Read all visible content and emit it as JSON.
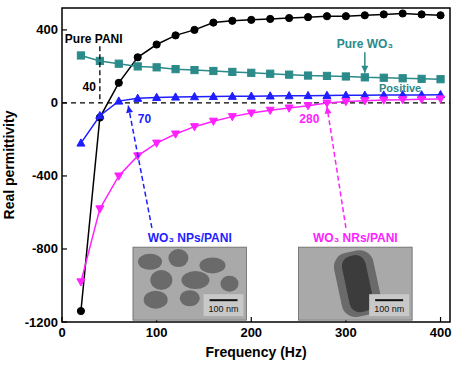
{
  "chart_data": {
    "type": "line",
    "xlabel": "Frequency (Hz)",
    "ylabel": "Real permittivity",
    "x": [
      20,
      40,
      60,
      80,
      100,
      120,
      140,
      160,
      180,
      200,
      220,
      240,
      260,
      280,
      300,
      320,
      340,
      360,
      380,
      400
    ],
    "series": [
      {
        "name": "Pure PANI",
        "color": "#000000",
        "marker": "circle",
        "line_style": "solid",
        "values": [
          -1140,
          -80,
          110,
          250,
          320,
          370,
          400,
          440,
          450,
          455,
          460,
          465,
          470,
          475,
          475,
          480,
          485,
          490,
          485,
          480
        ]
      },
      {
        "name": "Pure WO₃",
        "color": "#2b8a8a",
        "marker": "square",
        "line_style": "solid",
        "values": [
          260,
          230,
          215,
          200,
          195,
          185,
          180,
          175,
          170,
          165,
          160,
          155,
          150,
          148,
          145,
          140,
          138,
          135,
          132,
          130
        ]
      },
      {
        "name": "WO₃ NPs/PANI",
        "color": "#1e1eff",
        "marker": "triangle",
        "line_style": "solid",
        "values": [
          -220,
          -70,
          10,
          25,
          30,
          32,
          34,
          35,
          36,
          37,
          38,
          39,
          40,
          41,
          42,
          42,
          43,
          44,
          44,
          45
        ]
      },
      {
        "name": "WO₃ NRs/PANI",
        "color": "#ff22ff",
        "marker": "triangle-down",
        "line_style": "solid",
        "values": [
          -980,
          -580,
          -400,
          -290,
          -220,
          -170,
          -130,
          -100,
          -75,
          -55,
          -40,
          -28,
          -15,
          0,
          8,
          12,
          16,
          18,
          20,
          22
        ]
      }
    ],
    "xlim": [
      0,
      410
    ],
    "xticks": [
      0,
      100,
      200,
      300,
      400
    ],
    "ylim": [
      -1200,
      520
    ],
    "yticks": [
      -1200,
      -800,
      -400,
      0,
      400
    ],
    "grid": false,
    "annotations": [
      {
        "text": "Pure PANI",
        "color": "#000000"
      },
      {
        "text": "40",
        "value": 40,
        "color": "#000000"
      },
      {
        "text": "Pure WO₃",
        "color": "#2b8a8a"
      },
      {
        "text": "Positive",
        "value": 0,
        "color": "#2b8a8a"
      },
      {
        "text": "70",
        "value": 70,
        "color": "#1e1eff"
      },
      {
        "text": "WO₃ NPs/PANI",
        "color": "#1e1eff"
      },
      {
        "text": "280",
        "value": 280,
        "color": "#ff22ff"
      },
      {
        "text": "WO₃ NRs/PANI",
        "color": "#ff22ff"
      },
      {
        "text": "100 nm",
        "color": "#111111"
      },
      {
        "text": "100 nm",
        "color": "#111111"
      }
    ]
  }
}
